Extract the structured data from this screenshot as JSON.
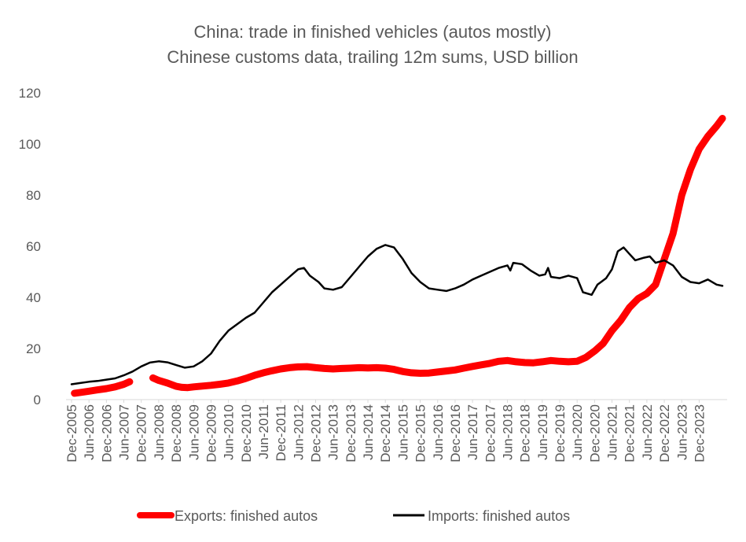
{
  "chart_data": {
    "type": "line",
    "title": "China: trade in finished vehicles  (autos mostly)",
    "subtitle": "Chinese customs data, trailing 12m sums, USD billion",
    "xlabel": "",
    "ylabel": "",
    "ylim": [
      0,
      120
    ],
    "yticks": [
      "0",
      "20",
      "40",
      "60",
      "80",
      "100",
      "120"
    ],
    "xticks": [
      "Dec-2005",
      "Jun-2006",
      "Dec-2006",
      "Jun-2007",
      "Dec-2007",
      "Jun-2008",
      "Dec-2008",
      "Jun-2009",
      "Dec-2009",
      "Jun-2010",
      "Dec-2010",
      "Jun-2011",
      "Dec-2011",
      "Jun-2012",
      "Dec-2012",
      "Jun-2013",
      "Dec-2013",
      "Jun-2014",
      "Dec-2014",
      "Jun-2015",
      "Dec-2015",
      "Jun-2016",
      "Dec-2016",
      "Jun-2017",
      "Dec-2017",
      "Jun-2018",
      "Dec-2018",
      "Jun-2019",
      "Dec-2019",
      "Jun-2020",
      "Dec-2020",
      "Jun-2021",
      "Dec-2021",
      "Jun-2022",
      "Dec-2022",
      "Jun-2023",
      "Dec-2023"
    ],
    "grid": false,
    "legend_position": "bottom",
    "x_units": "months since Dec-2005",
    "series": [
      {
        "name": "Exports: finished autos",
        "color": "#ff0000",
        "points": [
          [
            1,
            2.5
          ],
          [
            3,
            2.8
          ],
          [
            6,
            3.3
          ],
          [
            9,
            3.8
          ],
          [
            12,
            4.3
          ],
          [
            15,
            5.0
          ],
          [
            18,
            6.0
          ],
          [
            20,
            7.0
          ],
          [
            null,
            null
          ],
          [
            28,
            8.5
          ],
          [
            30,
            7.5
          ],
          [
            33,
            6.5
          ],
          [
            36,
            5.2
          ],
          [
            38,
            4.8
          ],
          [
            40,
            4.7
          ],
          [
            42,
            5.0
          ],
          [
            45,
            5.3
          ],
          [
            48,
            5.6
          ],
          [
            51,
            6.0
          ],
          [
            54,
            6.5
          ],
          [
            57,
            7.3
          ],
          [
            60,
            8.3
          ],
          [
            63,
            9.5
          ],
          [
            66,
            10.5
          ],
          [
            69,
            11.3
          ],
          [
            72,
            12.0
          ],
          [
            75,
            12.5
          ],
          [
            78,
            12.8
          ],
          [
            81,
            12.9
          ],
          [
            84,
            12.5
          ],
          [
            87,
            12.2
          ],
          [
            90,
            12.0
          ],
          [
            93,
            12.2
          ],
          [
            96,
            12.3
          ],
          [
            99,
            12.5
          ],
          [
            102,
            12.4
          ],
          [
            105,
            12.5
          ],
          [
            108,
            12.3
          ],
          [
            111,
            11.8
          ],
          [
            114,
            11.0
          ],
          [
            117,
            10.5
          ],
          [
            120,
            10.3
          ],
          [
            123,
            10.4
          ],
          [
            126,
            10.8
          ],
          [
            129,
            11.2
          ],
          [
            132,
            11.6
          ],
          [
            135,
            12.3
          ],
          [
            138,
            13.0
          ],
          [
            141,
            13.6
          ],
          [
            144,
            14.2
          ],
          [
            147,
            15.0
          ],
          [
            150,
            15.3
          ],
          [
            153,
            14.8
          ],
          [
            156,
            14.5
          ],
          [
            159,
            14.4
          ],
          [
            162,
            14.8
          ],
          [
            165,
            15.3
          ],
          [
            168,
            15.0
          ],
          [
            171,
            14.8
          ],
          [
            174,
            15.0
          ],
          [
            177,
            16.5
          ],
          [
            180,
            19.0
          ],
          [
            183,
            22.0
          ],
          [
            186,
            27.0
          ],
          [
            189,
            31.0
          ],
          [
            192,
            36.0
          ],
          [
            195,
            39.5
          ],
          [
            198,
            41.5
          ],
          [
            201,
            45.0
          ],
          [
            204,
            55.0
          ],
          [
            207,
            65.0
          ],
          [
            210,
            80.0
          ],
          [
            213,
            90.0
          ],
          [
            216,
            98.0
          ],
          [
            219,
            103.0
          ],
          [
            222,
            107.0
          ],
          [
            224,
            110.0
          ]
        ]
      },
      {
        "name": "Imports: finished autos",
        "color": "#000000",
        "points": [
          [
            0,
            6.0
          ],
          [
            3,
            6.5
          ],
          [
            6,
            7.0
          ],
          [
            9,
            7.3
          ],
          [
            12,
            7.8
          ],
          [
            15,
            8.3
          ],
          [
            18,
            9.5
          ],
          [
            21,
            11.0
          ],
          [
            24,
            13.0
          ],
          [
            27,
            14.5
          ],
          [
            30,
            15.0
          ],
          [
            33,
            14.6
          ],
          [
            36,
            13.5
          ],
          [
            39,
            12.5
          ],
          [
            42,
            13.0
          ],
          [
            45,
            15.0
          ],
          [
            48,
            18.0
          ],
          [
            51,
            23.0
          ],
          [
            54,
            27.0
          ],
          [
            57,
            29.5
          ],
          [
            60,
            32.0
          ],
          [
            63,
            34.0
          ],
          [
            66,
            38.0
          ],
          [
            69,
            42.0
          ],
          [
            72,
            45.0
          ],
          [
            75,
            48.0
          ],
          [
            78,
            51.0
          ],
          [
            80,
            51.5
          ],
          [
            82,
            48.5
          ],
          [
            85,
            46.0
          ],
          [
            87,
            43.5
          ],
          [
            90,
            43.0
          ],
          [
            93,
            44.0
          ],
          [
            96,
            48.0
          ],
          [
            99,
            52.0
          ],
          [
            102,
            56.0
          ],
          [
            105,
            59.0
          ],
          [
            108,
            60.5
          ],
          [
            111,
            59.5
          ],
          [
            114,
            55.0
          ],
          [
            117,
            49.5
          ],
          [
            120,
            46.0
          ],
          [
            123,
            43.5
          ],
          [
            126,
            43.0
          ],
          [
            129,
            42.5
          ],
          [
            132,
            43.5
          ],
          [
            135,
            45.0
          ],
          [
            138,
            47.0
          ],
          [
            141,
            48.5
          ],
          [
            144,
            50.0
          ],
          [
            147,
            51.5
          ],
          [
            150,
            52.5
          ],
          [
            151,
            50.5
          ],
          [
            152,
            53.5
          ],
          [
            155,
            53.0
          ],
          [
            158,
            50.5
          ],
          [
            161,
            48.5
          ],
          [
            163,
            49.0
          ],
          [
            164,
            51.5
          ],
          [
            165,
            48.0
          ],
          [
            168,
            47.5
          ],
          [
            171,
            48.5
          ],
          [
            174,
            47.5
          ],
          [
            176,
            42.0
          ],
          [
            179,
            41.0
          ],
          [
            181,
            45.0
          ],
          [
            184,
            47.5
          ],
          [
            186,
            51.0
          ],
          [
            188,
            58.0
          ],
          [
            190,
            59.5
          ],
          [
            192,
            57.0
          ],
          [
            194,
            54.5
          ],
          [
            197,
            55.5
          ],
          [
            199,
            56.0
          ],
          [
            201,
            53.5
          ],
          [
            204,
            54.5
          ],
          [
            207,
            52.5
          ],
          [
            210,
            48.0
          ],
          [
            213,
            46.0
          ],
          [
            216,
            45.5
          ],
          [
            219,
            47.0
          ],
          [
            222,
            45.0
          ],
          [
            224,
            44.5
          ]
        ]
      }
    ]
  }
}
